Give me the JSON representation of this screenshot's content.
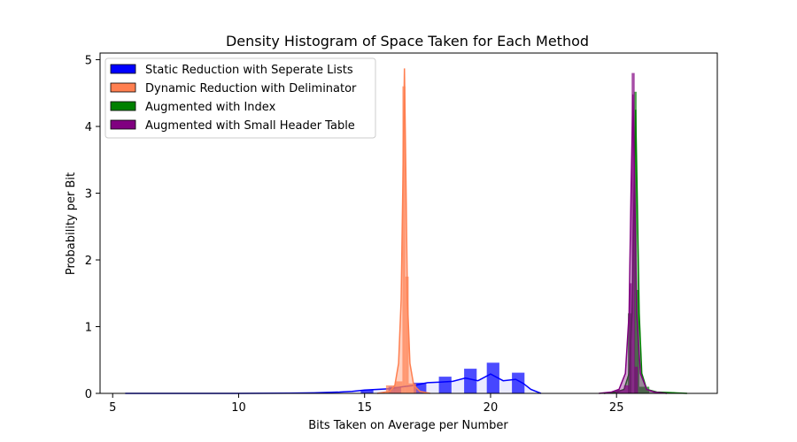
{
  "chart_data": {
    "type": "bar",
    "title": "Density Histogram of Space Taken for Each Method",
    "xlabel": "Bits Taken on Average per Number",
    "ylabel": "Probability per Bit",
    "xlim": [
      4.5,
      29.0
    ],
    "ylim": [
      0,
      5.1
    ],
    "xticks": [
      5,
      10,
      15,
      20,
      25
    ],
    "yticks": [
      0,
      1,
      2,
      3,
      4,
      5
    ],
    "legend_position": "top-left",
    "grid": false,
    "series": [
      {
        "name": "Static Reduction with Seperate Lists",
        "color": "#0000ff",
        "bins": [
          {
            "x0": 14.85,
            "x1": 15.35,
            "y": 0.05
          },
          {
            "x0": 15.95,
            "x1": 16.45,
            "y": 0.1
          },
          {
            "x0": 16.95,
            "x1": 17.45,
            "y": 0.16
          },
          {
            "x0": 17.95,
            "x1": 18.45,
            "y": 0.25
          },
          {
            "x0": 18.95,
            "x1": 19.45,
            "y": 0.37
          },
          {
            "x0": 19.85,
            "x1": 20.35,
            "y": 0.46
          },
          {
            "x0": 20.85,
            "x1": 21.35,
            "y": 0.31
          }
        ],
        "kde_x": [
          5.5,
          8,
          10,
          12,
          13,
          14,
          14.5,
          15,
          15.5,
          16,
          16.5,
          17,
          17.5,
          18,
          18.5,
          19,
          19.5,
          20,
          20.5,
          21,
          21.3,
          21.6,
          22
        ],
        "kde_y": [
          0.0,
          0.0,
          0.0,
          0.003,
          0.008,
          0.02,
          0.03,
          0.05,
          0.06,
          0.07,
          0.1,
          0.12,
          0.16,
          0.17,
          0.18,
          0.23,
          0.19,
          0.29,
          0.19,
          0.21,
          0.15,
          0.06,
          0.0
        ]
      },
      {
        "name": "Dynamic Reduction with Deliminator",
        "color": "#ff7f50",
        "bins": [
          {
            "x0": 15.85,
            "x1": 16.2,
            "y": 0.12
          },
          {
            "x0": 16.2,
            "x1": 16.5,
            "y": 0.18
          },
          {
            "x0": 16.5,
            "x1": 16.62,
            "y": 4.6
          },
          {
            "x0": 16.62,
            "x1": 16.75,
            "y": 1.75
          },
          {
            "x0": 16.75,
            "x1": 17.05,
            "y": 0.15
          }
        ],
        "kde_x": [
          15.5,
          16.0,
          16.2,
          16.35,
          16.45,
          16.52,
          16.58,
          16.64,
          16.7,
          16.8,
          16.95,
          17.2,
          17.6
        ],
        "kde_y": [
          0.0,
          0.03,
          0.12,
          0.45,
          1.4,
          3.2,
          4.87,
          3.2,
          1.4,
          0.45,
          0.12,
          0.03,
          0.0
        ]
      },
      {
        "name": "Augmented with Index",
        "color": "#008000",
        "bins": [
          {
            "x0": 25.45,
            "x1": 25.6,
            "y": 1.2
          },
          {
            "x0": 25.7,
            "x1": 25.8,
            "y": 4.52
          },
          {
            "x0": 25.8,
            "x1": 25.9,
            "y": 1.55
          },
          {
            "x0": 25.9,
            "x1": 26.3,
            "y": 0.1
          }
        ],
        "kde_x": [
          24.5,
          25.0,
          25.3,
          25.5,
          25.62,
          25.7,
          25.76,
          25.82,
          25.9,
          26.0,
          26.2,
          26.6,
          27.8
        ],
        "kde_y": [
          0.0,
          0.02,
          0.06,
          0.3,
          1.2,
          3.0,
          4.25,
          3.0,
          1.2,
          0.3,
          0.06,
          0.02,
          0.0
        ]
      },
      {
        "name": "Augmented with Small Header Table",
        "color": "#800080",
        "bins": [
          {
            "x0": 24.95,
            "x1": 25.3,
            "y": 0.05
          },
          {
            "x0": 25.3,
            "x1": 25.5,
            "y": 0.12
          },
          {
            "x0": 25.5,
            "x1": 25.6,
            "y": 1.65
          },
          {
            "x0": 25.6,
            "x1": 25.72,
            "y": 4.8
          },
          {
            "x0": 25.72,
            "x1": 25.85,
            "y": 0.4
          }
        ],
        "kde_x": [
          24.3,
          24.8,
          25.1,
          25.35,
          25.5,
          25.58,
          25.65,
          25.72,
          25.8,
          25.95,
          26.2,
          26.5,
          27.0
        ],
        "kde_y": [
          0.0,
          0.02,
          0.06,
          0.3,
          1.2,
          3.1,
          4.48,
          3.1,
          1.2,
          0.3,
          0.06,
          0.02,
          0.0
        ]
      }
    ]
  }
}
